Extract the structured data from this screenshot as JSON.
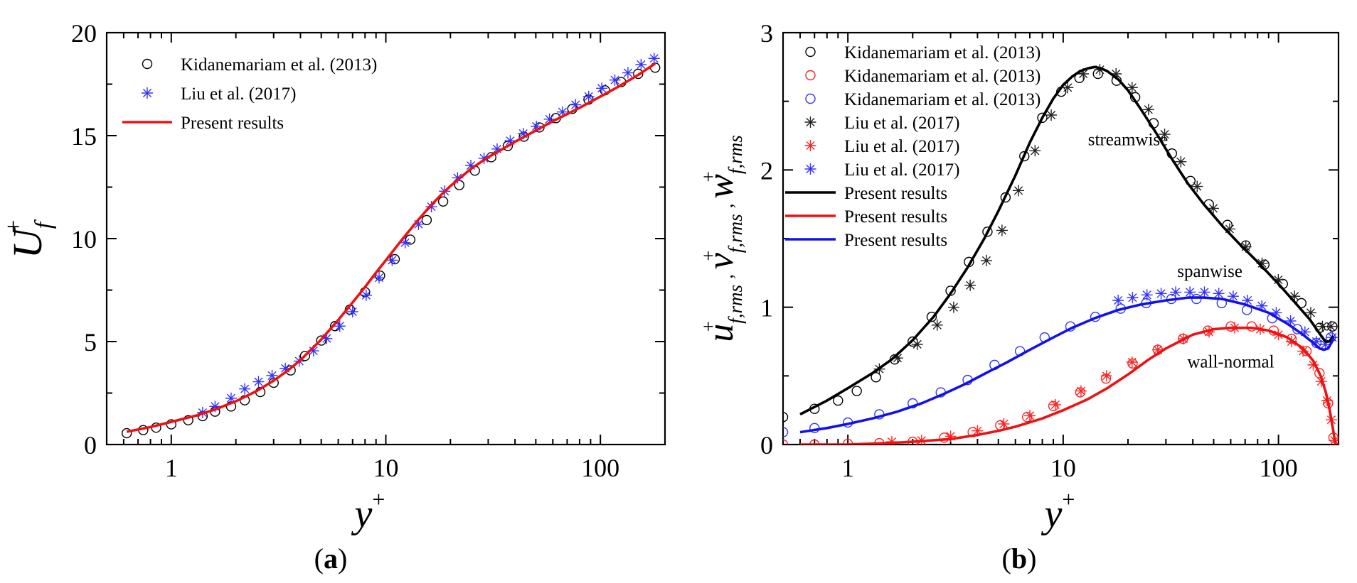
{
  "chart_data": [
    {
      "type": "line",
      "panel_label": "(a)",
      "panel_letter": "a",
      "xscale": "log",
      "xlim": [
        0.5,
        200
      ],
      "ylim": [
        0,
        20
      ],
      "xticks": [
        1,
        10,
        100
      ],
      "xtick_labels": [
        "1",
        "10",
        "100"
      ],
      "yticks": [
        0,
        5,
        10,
        15,
        20
      ],
      "ytick_labels": [
        "0",
        "5",
        "10",
        "15",
        "20"
      ],
      "xlabel": "y",
      "xlabel_sup": "+",
      "ylabel": "U",
      "ylabel_sub": "f",
      "ylabel_sup": "+",
      "legend_position": "top-left",
      "series": [
        {
          "name": "Kidanemariam et al. (2013)",
          "marker": "circle",
          "color": "#000000",
          "x": [
            0.62,
            0.74,
            0.85,
            1.0,
            1.2,
            1.4,
            1.6,
            1.9,
            2.2,
            2.6,
            3.0,
            3.6,
            4.2,
            5.0,
            5.8,
            6.8,
            8.0,
            9.4,
            11.0,
            13.0,
            15.5,
            18.5,
            22,
            26,
            31,
            37,
            44,
            52,
            62,
            74,
            88,
            105,
            125,
            150,
            180
          ],
          "y": [
            0.55,
            0.7,
            0.82,
            0.98,
            1.18,
            1.38,
            1.6,
            1.85,
            2.15,
            2.55,
            3.0,
            3.6,
            4.3,
            5.05,
            5.75,
            6.55,
            7.4,
            8.2,
            9.0,
            9.95,
            10.9,
            11.8,
            12.6,
            13.3,
            13.95,
            14.5,
            14.95,
            15.4,
            15.85,
            16.3,
            16.75,
            17.2,
            17.6,
            18.0,
            18.3
          ]
        },
        {
          "name": "Liu et al. (2017)",
          "marker": "asterisk",
          "color": "#3333ff",
          "x": [
            1.4,
            1.6,
            1.9,
            2.2,
            2.55,
            2.95,
            3.4,
            3.95,
            4.6,
            5.3,
            6.1,
            7.0,
            8.1,
            9.3,
            10.7,
            12.3,
            14.2,
            16.3,
            18.8,
            21.6,
            24.9,
            28.7,
            33,
            38,
            43.7,
            50.3,
            57.9,
            66.6,
            76.6,
            88.2,
            101.5,
            116.8,
            134.4,
            154.7,
            178
          ],
          "y": [
            1.55,
            1.85,
            2.25,
            2.7,
            3.05,
            3.35,
            3.7,
            4.05,
            4.55,
            5.15,
            5.75,
            6.45,
            7.25,
            8.1,
            8.95,
            9.8,
            10.7,
            11.55,
            12.3,
            12.95,
            13.55,
            13.9,
            14.35,
            14.75,
            15.1,
            15.45,
            15.8,
            16.15,
            16.5,
            16.9,
            17.3,
            17.7,
            18.05,
            18.45,
            18.75
          ]
        },
        {
          "name": "Present results",
          "marker": "line",
          "color": "#ee1111",
          "x": [
            0.62,
            0.8,
            1.0,
            1.3,
            1.6,
            2.0,
            2.5,
            3.0,
            3.5,
            4.0,
            5.0,
            6.0,
            7.0,
            8.0,
            9.0,
            10.0,
            11.0,
            12.0,
            14.0,
            16.0,
            18.0,
            20.0,
            25.0,
            30.0,
            35.0,
            40.0,
            50.0,
            60.0,
            70.0,
            80.0,
            100.0,
            120.0,
            150.0,
            180.0
          ],
          "y": [
            0.62,
            0.85,
            1.1,
            1.4,
            1.7,
            2.1,
            2.6,
            3.1,
            3.6,
            4.1,
            5.1,
            6.05,
            6.9,
            7.65,
            8.35,
            8.95,
            9.5,
            10.0,
            10.85,
            11.55,
            12.1,
            12.55,
            13.4,
            13.95,
            14.35,
            14.7,
            15.25,
            15.7,
            16.05,
            16.35,
            16.9,
            17.35,
            17.95,
            18.5
          ]
        }
      ]
    },
    {
      "type": "line",
      "panel_label": "(b)",
      "panel_letter": "b",
      "xscale": "log",
      "xlim": [
        0.5,
        190
      ],
      "ylim": [
        0,
        3
      ],
      "xticks": [
        1,
        10,
        100
      ],
      "xtick_labels": [
        "1",
        "10",
        "100"
      ],
      "yticks": [
        0,
        1,
        2,
        3
      ],
      "ytick_labels": [
        "0",
        "1",
        "2",
        "3"
      ],
      "xlabel": "y",
      "xlabel_sup": "+",
      "ylabel_parts": [
        "u",
        "v",
        "w"
      ],
      "ylabel_sub": "f,rms",
      "ylabel_sup": "+",
      "ylabel_sep": ",",
      "legend_position": "top-left",
      "annotations": [
        {
          "text": "streamwise",
          "x": 20,
          "y": 2.18
        },
        {
          "text": "spanwise",
          "x": 48,
          "y": 1.22
        },
        {
          "text": "wall-normal",
          "x": 60,
          "y": 0.56
        }
      ],
      "series": [
        {
          "name": "Kidanemariam et al. (2013)",
          "marker": "circle",
          "color": "#000000",
          "x": [
            0.5,
            0.7,
            0.9,
            1.1,
            1.35,
            1.65,
            2.0,
            2.45,
            3.0,
            3.65,
            4.45,
            5.4,
            6.6,
            8.0,
            9.8,
            11.9,
            14.5,
            17.7,
            21.6,
            26.3,
            32,
            39,
            47.5,
            57.9,
            70.5,
            86,
            104.8,
            127.7,
            155.6,
            178
          ],
          "y": [
            0.2,
            0.26,
            0.32,
            0.39,
            0.49,
            0.62,
            0.75,
            0.93,
            1.12,
            1.33,
            1.55,
            1.8,
            2.1,
            2.38,
            2.57,
            2.67,
            2.7,
            2.65,
            2.53,
            2.34,
            2.12,
            1.92,
            1.75,
            1.6,
            1.45,
            1.31,
            1.17,
            1.03,
            0.85,
            0.86
          ]
        },
        {
          "name": "Kidanemariam et al. (2013)",
          "marker": "circle",
          "color": "#ff2222",
          "x": [
            0.5,
            0.7,
            1.0,
            1.4,
            2.0,
            2.8,
            3.8,
            5.1,
            6.8,
            9.0,
            12.0,
            15.8,
            21.0,
            27.5,
            36.0,
            47.0,
            60.0,
            75.0,
            95.0,
            115.0,
            135.0,
            155.0,
            170.0,
            180.0
          ],
          "y": [
            0.0,
            0.0,
            0.005,
            0.01,
            0.02,
            0.05,
            0.09,
            0.14,
            0.2,
            0.28,
            0.38,
            0.48,
            0.59,
            0.69,
            0.77,
            0.83,
            0.86,
            0.86,
            0.83,
            0.77,
            0.68,
            0.52,
            0.3,
            0.05
          ]
        },
        {
          "name": "Kidanemariam et al. (2013)",
          "marker": "circle",
          "color": "#3333ff",
          "x": [
            0.5,
            0.7,
            1.0,
            1.4,
            2.0,
            2.7,
            3.6,
            4.8,
            6.3,
            8.2,
            10.8,
            14.1,
            18.5,
            24.3,
            31.8,
            41.6,
            54.5,
            71.4,
            93.5,
            122.5,
            150.0,
            175.0
          ],
          "y": [
            0.09,
            0.12,
            0.16,
            0.22,
            0.3,
            0.38,
            0.47,
            0.58,
            0.68,
            0.78,
            0.86,
            0.93,
            0.99,
            1.03,
            1.06,
            1.06,
            1.03,
            0.98,
            0.92,
            0.84,
            0.74,
            0.78
          ]
        },
        {
          "name": "Liu et al. (2017)",
          "marker": "asterisk",
          "color": "#222222",
          "x": [
            1.4,
            1.7,
            2.1,
            2.6,
            3.1,
            3.7,
            4.4,
            5.2,
            6.2,
            7.4,
            8.8,
            10.5,
            12.4,
            14.8,
            17.6,
            20.9,
            24.9,
            29.6,
            35.2,
            41.9,
            49.8,
            59.3,
            70.5,
            83.9,
            99.8,
            118.7,
            141.2,
            160.0,
            175.0
          ],
          "y": [
            0.55,
            0.63,
            0.73,
            0.87,
            1.0,
            1.16,
            1.34,
            1.56,
            1.85,
            2.14,
            2.4,
            2.6,
            2.7,
            2.73,
            2.7,
            2.6,
            2.44,
            2.26,
            2.06,
            1.88,
            1.72,
            1.57,
            1.44,
            1.32,
            1.2,
            1.08,
            0.96,
            0.86,
            0.86
          ]
        },
        {
          "name": "Liu et al. (2017)",
          "marker": "asterisk",
          "color": "#ff2222",
          "x": [
            1.6,
            2.2,
            3.0,
            4.0,
            5.3,
            7.0,
            9.2,
            12.1,
            15.9,
            20.9,
            27.5,
            36.2,
            47.6,
            62.6,
            82.3,
            100.0,
            115.0,
            130.0,
            145.0,
            158.0,
            168.0,
            176.0,
            182.0
          ],
          "y": [
            0.02,
            0.03,
            0.06,
            0.1,
            0.15,
            0.21,
            0.29,
            0.39,
            0.5,
            0.6,
            0.69,
            0.77,
            0.82,
            0.85,
            0.84,
            0.8,
            0.75,
            0.68,
            0.58,
            0.46,
            0.32,
            0.18,
            0.03
          ]
        },
        {
          "name": "Liu et al. (2017)",
          "marker": "asterisk",
          "color": "#3333ff",
          "x": [
            18.0,
            21.0,
            24.5,
            28.5,
            33.3,
            38.8,
            45.3,
            52.8,
            61.6,
            71.8,
            83.7,
            97.6,
            113.8,
            132.7,
            150.0,
            165.0,
            178.0
          ],
          "y": [
            1.05,
            1.07,
            1.09,
            1.1,
            1.11,
            1.11,
            1.11,
            1.1,
            1.08,
            1.05,
            1.01,
            0.96,
            0.9,
            0.82,
            0.75,
            0.73,
            0.78
          ]
        },
        {
          "name": "Present results",
          "marker": "line",
          "color": "#000000",
          "x": [
            0.6,
            0.8,
            1.0,
            1.3,
            1.6,
            2.0,
            2.5,
            3.0,
            3.6,
            4.3,
            5.0,
            6.0,
            7.0,
            8.0,
            9.0,
            10.0,
            11.0,
            12.0,
            13.0,
            14.0,
            15.0,
            16.0,
            18.0,
            20.0,
            23.0,
            27.0,
            32.0,
            38.0,
            45.0,
            55.0,
            65.0,
            80.0,
            100.0,
            120.0,
            140.0,
            155.0,
            165.0,
            172.0,
            180.0
          ],
          "y": [
            0.22,
            0.32,
            0.41,
            0.52,
            0.62,
            0.76,
            0.93,
            1.1,
            1.29,
            1.5,
            1.7,
            1.96,
            2.2,
            2.38,
            2.52,
            2.62,
            2.68,
            2.72,
            2.74,
            2.75,
            2.74,
            2.72,
            2.66,
            2.58,
            2.44,
            2.27,
            2.08,
            1.9,
            1.75,
            1.59,
            1.47,
            1.33,
            1.17,
            1.03,
            0.91,
            0.81,
            0.75,
            0.75,
            0.79
          ]
        },
        {
          "name": "Present results",
          "marker": "line",
          "color": "#ee1111",
          "x": [
            0.6,
            1.0,
            1.5,
            2.0,
            3.0,
            4.0,
            5.0,
            6.0,
            8.0,
            10.0,
            13.0,
            16.0,
            20.0,
            25.0,
            30.0,
            40.0,
            50.0,
            60.0,
            75.0,
            90.0,
            110.0,
            130.0,
            145.0,
            157.0,
            166.0,
            172.0,
            177.0,
            181.0,
            184.0
          ],
          "y": [
            0.0,
            0.0,
            0.01,
            0.02,
            0.04,
            0.07,
            0.1,
            0.13,
            0.19,
            0.25,
            0.33,
            0.41,
            0.51,
            0.62,
            0.7,
            0.8,
            0.84,
            0.85,
            0.85,
            0.83,
            0.78,
            0.7,
            0.61,
            0.5,
            0.38,
            0.27,
            0.16,
            0.07,
            0.0
          ]
        },
        {
          "name": "Present results",
          "marker": "line",
          "color": "#1111ee",
          "x": [
            0.6,
            0.8,
            1.0,
            1.3,
            1.7,
            2.2,
            2.8,
            3.5,
            4.5,
            5.5,
            7.0,
            9.0,
            11.0,
            14.0,
            18.0,
            23.0,
            30.0,
            38.0,
            45.0,
            55.0,
            70.0,
            90.0,
            110.0,
            130.0,
            145.0,
            155.0,
            163.0,
            170.0,
            176.0,
            180.0
          ],
          "y": [
            0.09,
            0.12,
            0.15,
            0.19,
            0.24,
            0.3,
            0.37,
            0.44,
            0.53,
            0.6,
            0.69,
            0.78,
            0.85,
            0.92,
            0.98,
            1.02,
            1.05,
            1.07,
            1.07,
            1.06,
            1.02,
            0.96,
            0.88,
            0.8,
            0.74,
            0.7,
            0.69,
            0.7,
            0.74,
            0.78
          ]
        }
      ]
    }
  ]
}
